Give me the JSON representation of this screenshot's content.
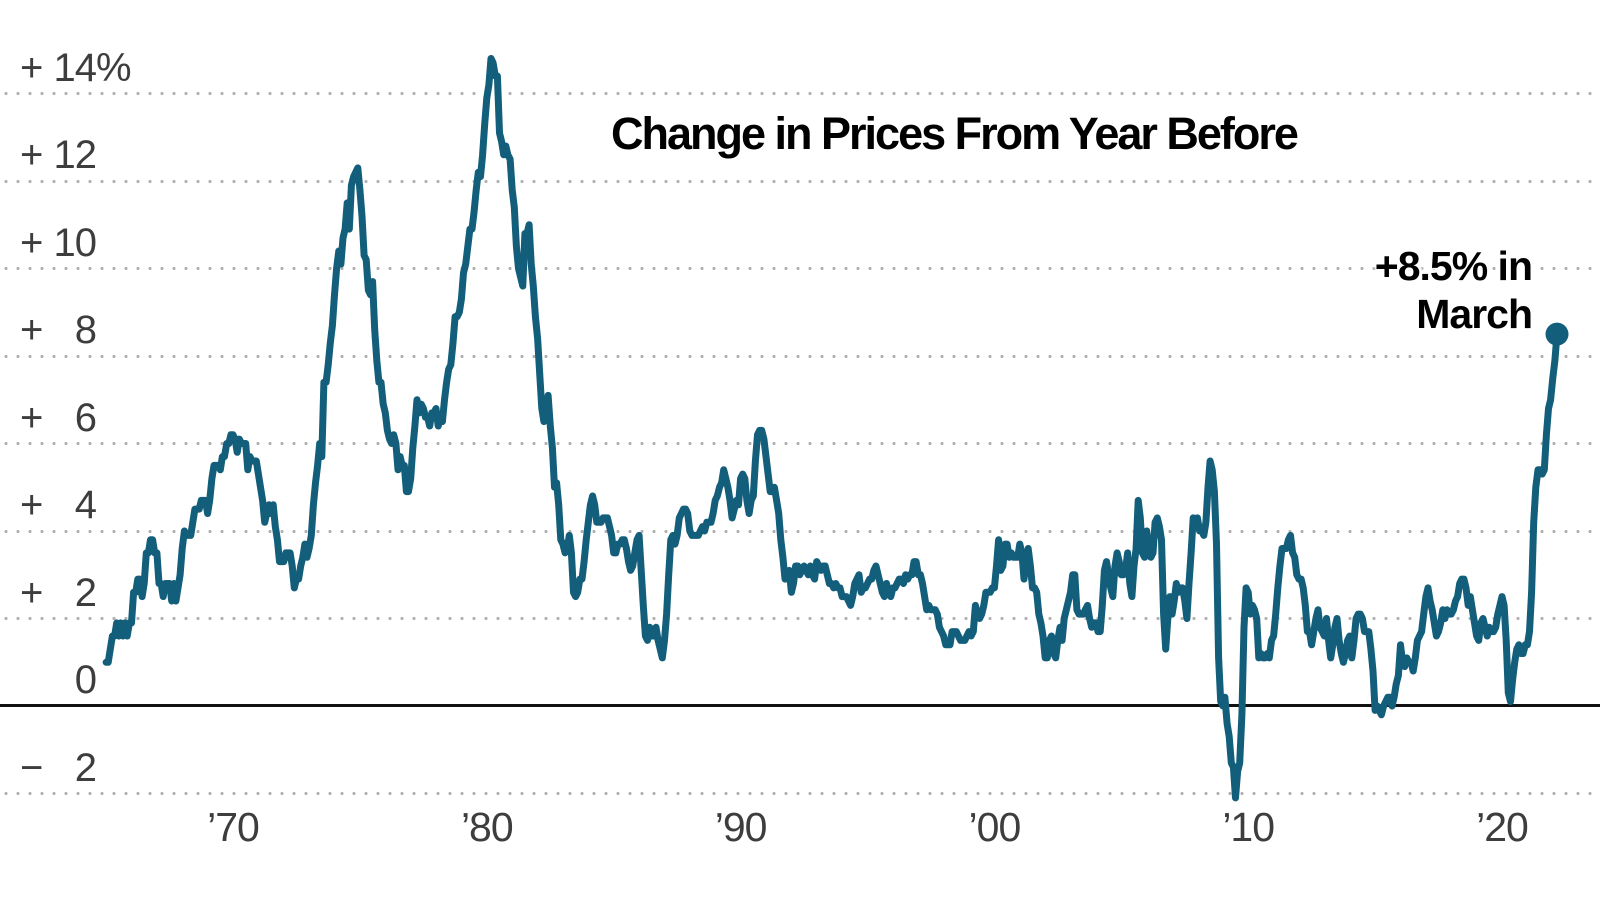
{
  "chart_data": {
    "type": "line",
    "title": "Change in Prices From Year Before",
    "annotation": {
      "line1": "+8.5% in",
      "line2": "March"
    },
    "frequency": "monthly",
    "start_year": 1965,
    "start_month": 1,
    "end_label": "March 2022",
    "end_dot_value": 8.5,
    "ylim": [
      -3,
      15.6
    ],
    "grid": "dotted horizontal",
    "legend_position": "none",
    "colors": {
      "line": "#135e7a",
      "axis": "#111111",
      "gridline": "#b1b1b1",
      "tick_label": "#3d3d3d",
      "title": "#000000"
    },
    "y_ticks": [
      {
        "sign": "+",
        "num": "14",
        "suffix": "%",
        "value": 14
      },
      {
        "sign": "+",
        "num": "12",
        "suffix": "",
        "value": 12
      },
      {
        "sign": "+",
        "num": "10",
        "suffix": "",
        "value": 10
      },
      {
        "sign": "+",
        "num": "8",
        "suffix": "",
        "value": 8
      },
      {
        "sign": "+",
        "num": "6",
        "suffix": "",
        "value": 6
      },
      {
        "sign": "+",
        "num": "4",
        "suffix": "",
        "value": 4
      },
      {
        "sign": "+",
        "num": "2",
        "suffix": "",
        "value": 2
      },
      {
        "sign": "",
        "num": "0",
        "suffix": "",
        "value": 0
      },
      {
        "sign": "−",
        "num": "2",
        "suffix": "",
        "value": -2
      }
    ],
    "x_ticks": [
      {
        "label": "’70",
        "year": 1970
      },
      {
        "label": "’80",
        "year": 1980
      },
      {
        "label": "’90",
        "year": 1990
      },
      {
        "label": "’00",
        "year": 2000
      },
      {
        "label": "’10",
        "year": 2010
      },
      {
        "label": "’20",
        "year": 2020
      }
    ],
    "values_by_year": [
      [
        1.0,
        1.0,
        1.3,
        1.6,
        1.6,
        1.9,
        1.6,
        1.9,
        1.6,
        1.9,
        1.6,
        1.9
      ],
      [
        1.9,
        2.6,
        2.6,
        2.9,
        2.9,
        2.5,
        2.8,
        3.5,
        3.5,
        3.8,
        3.8,
        3.5
      ],
      [
        3.5,
        2.8,
        2.8,
        2.5,
        2.8,
        2.8,
        2.8,
        2.4,
        2.8,
        2.4,
        2.7,
        3.0
      ],
      [
        3.6,
        4.0,
        3.9,
        3.9,
        3.9,
        4.2,
        4.5,
        4.5,
        4.5,
        4.7,
        4.7,
        4.7
      ],
      [
        4.4,
        4.7,
        5.2,
        5.5,
        5.5,
        5.5,
        5.4,
        5.7,
        5.7,
        6.0,
        6.0,
        6.2
      ],
      [
        6.2,
        6.1,
        5.8,
        6.1,
        6.0,
        6.0,
        6.0,
        5.4,
        5.7,
        5.6,
        5.6,
        5.6
      ],
      [
        5.3,
        5.0,
        4.7,
        4.2,
        4.4,
        4.6,
        4.4,
        4.6,
        4.1,
        3.8,
        3.3,
        3.3
      ],
      [
        3.3,
        3.5,
        3.5,
        3.5,
        3.2,
        2.7,
        2.9,
        2.9,
        3.2,
        3.4,
        3.7,
        3.4
      ],
      [
        3.6,
        3.9,
        4.6,
        5.1,
        5.5,
        6.0,
        5.7,
        7.4,
        7.4,
        7.8,
        8.3,
        8.7
      ],
      [
        9.4,
        10.0,
        10.4,
        10.1,
        10.7,
        10.9,
        11.5,
        10.9,
        11.9,
        12.1,
        12.2,
        12.3
      ],
      [
        11.8,
        11.2,
        10.3,
        10.2,
        9.5,
        9.4,
        9.7,
        8.6,
        7.9,
        7.4,
        7.4,
        6.9
      ],
      [
        6.7,
        6.3,
        6.1,
        6.0,
        6.2,
        6.0,
        5.4,
        5.7,
        5.5,
        5.5,
        4.9,
        4.9
      ],
      [
        5.2,
        5.9,
        6.4,
        7.0,
        6.7,
        6.9,
        6.8,
        6.6,
        6.6,
        6.4,
        6.7,
        6.7
      ],
      [
        6.8,
        6.4,
        6.6,
        6.5,
        7.0,
        7.4,
        7.7,
        7.8,
        8.3,
        8.9,
        8.9,
        9.0
      ],
      [
        9.3,
        9.9,
        10.1,
        10.5,
        10.9,
        10.9,
        11.3,
        11.8,
        12.2,
        12.1,
        12.6,
        13.3
      ],
      [
        13.9,
        14.2,
        14.8,
        14.7,
        14.4,
        14.4,
        13.1,
        12.9,
        12.6,
        12.8,
        12.6,
        12.5
      ],
      [
        11.8,
        11.4,
        10.5,
        10.0,
        9.8,
        9.6,
        10.8,
        10.8,
        11.0,
        10.1,
        9.6,
        8.9
      ],
      [
        8.4,
        7.6,
        6.8,
        6.5,
        6.7,
        7.1,
        6.4,
        5.9,
        5.0,
        5.1,
        4.6,
        3.8
      ],
      [
        3.7,
        3.5,
        3.6,
        3.9,
        3.5,
        2.6,
        2.5,
        2.6,
        2.9,
        2.9,
        3.3,
        3.8
      ],
      [
        4.2,
        4.6,
        4.8,
        4.6,
        4.2,
        4.2,
        4.2,
        4.3,
        4.3,
        4.3,
        4.1,
        3.9
      ],
      [
        3.5,
        3.5,
        3.7,
        3.7,
        3.8,
        3.8,
        3.6,
        3.3,
        3.1,
        3.2,
        3.5,
        3.8
      ],
      [
        3.9,
        3.1,
        2.3,
        1.6,
        1.5,
        1.8,
        1.6,
        1.6,
        1.8,
        1.5,
        1.3,
        1.1
      ],
      [
        1.5,
        2.1,
        3.0,
        3.8,
        3.9,
        3.7,
        3.9,
        4.3,
        4.4,
        4.5,
        4.5,
        4.4
      ],
      [
        4.0,
        3.9,
        3.9,
        3.9,
        3.9,
        4.0,
        4.1,
        4.0,
        4.2,
        4.2,
        4.2,
        4.4
      ],
      [
        4.7,
        4.8,
        5.0,
        5.1,
        5.4,
        5.2,
        5.0,
        4.7,
        4.3,
        4.5,
        4.7,
        4.6
      ],
      [
        5.2,
        5.3,
        5.2,
        4.7,
        4.4,
        4.7,
        4.8,
        5.6,
        6.2,
        6.3,
        6.3,
        6.1
      ],
      [
        5.7,
        5.3,
        4.9,
        4.9,
        5.0,
        4.7,
        4.4,
        3.8,
        3.4,
        2.9,
        3.0,
        3.1
      ],
      [
        2.6,
        2.8,
        3.2,
        3.2,
        3.0,
        3.1,
        3.2,
        3.1,
        3.0,
        3.2,
        3.0,
        2.9
      ],
      [
        3.3,
        3.2,
        3.1,
        3.2,
        3.2,
        3.0,
        2.8,
        2.8,
        2.7,
        2.8,
        2.7,
        2.7
      ],
      [
        2.5,
        2.5,
        2.5,
        2.4,
        2.3,
        2.5,
        2.8,
        2.9,
        3.0,
        2.6,
        2.7,
        2.7
      ],
      [
        2.8,
        2.9,
        2.9,
        3.1,
        3.2,
        3.0,
        2.8,
        2.6,
        2.5,
        2.8,
        2.6,
        2.5
      ],
      [
        2.7,
        2.7,
        2.8,
        2.9,
        2.9,
        2.8,
        3.0,
        2.9,
        3.0,
        3.0,
        3.3,
        3.3
      ],
      [
        3.0,
        3.0,
        2.8,
        2.5,
        2.2,
        2.3,
        2.2,
        2.2,
        2.2,
        2.1,
        1.8,
        1.7
      ],
      [
        1.6,
        1.4,
        1.4,
        1.4,
        1.7,
        1.7,
        1.7,
        1.6,
        1.5,
        1.5,
        1.5,
        1.6
      ],
      [
        1.7,
        1.6,
        1.7,
        2.3,
        2.1,
        2.0,
        2.1,
        2.3,
        2.6,
        2.6,
        2.6,
        2.7
      ],
      [
        2.7,
        3.2,
        3.8,
        3.1,
        3.2,
        3.7,
        3.7,
        3.4,
        3.5,
        3.4,
        3.4,
        3.4
      ],
      [
        3.7,
        3.5,
        2.9,
        3.3,
        3.6,
        3.2,
        2.7,
        2.7,
        2.6,
        2.1,
        1.9,
        1.6
      ],
      [
        1.1,
        1.1,
        1.5,
        1.6,
        1.2,
        1.1,
        1.5,
        1.8,
        1.5,
        2.0,
        2.2,
        2.4
      ],
      [
        2.6,
        3.0,
        3.0,
        2.2,
        2.1,
        2.1,
        2.1,
        2.2,
        2.3,
        2.0,
        1.8,
        1.9
      ],
      [
        1.9,
        1.7,
        1.7,
        2.3,
        3.1,
        3.3,
        3.0,
        2.7,
        2.5,
        3.2,
        3.5,
        3.3
      ],
      [
        3.0,
        3.0,
        3.1,
        3.5,
        2.8,
        2.5,
        3.2,
        3.6,
        4.7,
        4.3,
        3.5,
        3.4
      ],
      [
        4.0,
        3.6,
        3.4,
        3.5,
        4.2,
        4.3,
        4.1,
        3.8,
        2.1,
        1.3,
        2.0,
        2.5
      ],
      [
        2.1,
        2.4,
        2.8,
        2.6,
        2.7,
        2.7,
        2.4,
        2.0,
        2.8,
        3.5,
        4.3,
        4.1
      ],
      [
        4.3,
        4.0,
        4.0,
        3.9,
        4.2,
        5.0,
        5.6,
        5.4,
        4.9,
        3.7,
        1.1,
        0.1
      ],
      [
        0.0,
        0.2,
        -0.4,
        -0.7,
        -1.3,
        -1.4,
        -2.1,
        -1.5,
        -1.3,
        -0.2,
        1.8,
        2.7
      ],
      [
        2.6,
        2.1,
        2.3,
        2.2,
        2.0,
        1.1,
        1.2,
        1.1,
        1.1,
        1.2,
        1.1,
        1.5
      ],
      [
        1.6,
        2.1,
        2.7,
        3.2,
        3.6,
        3.6,
        3.6,
        3.8,
        3.9,
        3.5,
        3.4,
        3.0
      ],
      [
        2.9,
        2.9,
        2.7,
        2.3,
        1.7,
        1.7,
        1.4,
        1.7,
        2.0,
        2.2,
        1.8,
        1.7
      ],
      [
        1.6,
        2.0,
        1.5,
        1.1,
        1.4,
        1.8,
        2.0,
        1.5,
        1.2,
        1.0,
        1.2,
        1.5
      ],
      [
        1.6,
        1.1,
        1.5,
        2.0,
        2.1,
        2.1,
        2.0,
        1.7,
        1.7,
        1.7,
        1.3,
        0.8
      ],
      [
        -0.1,
        0.0,
        -0.1,
        -0.2,
        0.0,
        0.1,
        0.2,
        0.2,
        0.0,
        0.2,
        0.5,
        0.7
      ],
      [
        1.4,
        1.0,
        0.9,
        1.1,
        1.0,
        1.0,
        0.8,
        1.1,
        1.5,
        1.6,
        1.7,
        2.1
      ],
      [
        2.5,
        2.7,
        2.4,
        2.2,
        1.9,
        1.6,
        1.7,
        1.9,
        2.2,
        2.0,
        2.2,
        2.1
      ],
      [
        2.1,
        2.2,
        2.4,
        2.5,
        2.8,
        2.9,
        2.9,
        2.7,
        2.3,
        2.5,
        2.2,
        1.9
      ],
      [
        1.6,
        1.5,
        1.9,
        2.0,
        1.8,
        1.6,
        1.8,
        1.7,
        1.7,
        1.8,
        2.1,
        2.3
      ],
      [
        2.5,
        2.3,
        1.5,
        0.3,
        0.1,
        0.6,
        1.0,
        1.3,
        1.4,
        1.2,
        1.2,
        1.4
      ],
      [
        1.4,
        1.7,
        2.6,
        4.2,
        5.0,
        5.4,
        5.4,
        5.3,
        5.4,
        6.2,
        6.8,
        7.0
      ],
      [
        7.5,
        7.9,
        8.5
      ]
    ]
  }
}
